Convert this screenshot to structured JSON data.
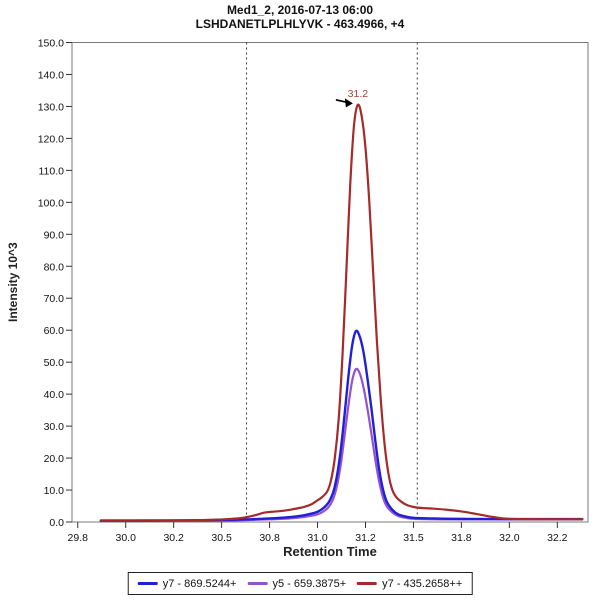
{
  "title": {
    "line1": "Med1_2, 2016-07-13 06:00",
    "line2": "LSHDANETLPLHLYVK - 463.4966, +4"
  },
  "axes": {
    "x": {
      "title": "Retention Time",
      "min": 29.72,
      "max": 32.41,
      "tick_values": [
        29.75,
        30.0,
        30.25,
        30.5,
        30.75,
        31.0,
        31.25,
        31.5,
        31.75,
        32.0,
        32.25
      ],
      "tick_labels": [
        "29.8",
        "30.0",
        "30.2",
        "30.5",
        "30.8",
        "31.0",
        "31.2",
        "31.5",
        "31.8",
        "32.0",
        "32.2"
      ]
    },
    "y": {
      "title": "Intensity 10^3",
      "min": 0,
      "max": 150,
      "tick_values": [
        0,
        10,
        20,
        30,
        40,
        50,
        60,
        70,
        80,
        90,
        100,
        110,
        120,
        130,
        140,
        150
      ],
      "tick_labels": [
        "0.0",
        "10.0",
        "20.0",
        "30.0",
        "40.0",
        "50.0",
        "60.0",
        "70.0",
        "80.0",
        "90.0",
        "100.0",
        "110.0",
        "120.0",
        "130.0",
        "140.0",
        "150.0"
      ]
    }
  },
  "peak_annotation": {
    "text": "31.2",
    "time": 31.2,
    "intensity": 130.5,
    "text_color": "#A5402F",
    "arrow_color": "#000000"
  },
  "integration_boundaries": {
    "left_time": 30.63,
    "right_time": 31.52,
    "line_color": "#3a3a3a",
    "style": "dashed"
  },
  "frame_color": "#787878",
  "legend": {
    "items": [
      {
        "label": "y7 - 869.5244+",
        "color": "#2020D8"
      },
      {
        "label": "y5 - 659.3875+",
        "color": "#9452D1"
      },
      {
        "label": "y7 - 435.2658++",
        "color": "#A52A2A"
      }
    ]
  },
  "chart_data": {
    "type": "line",
    "title": "Med1_2, 2016-07-13 06:00",
    "subtitle": "LSHDANETLPLHLYVK - 463.4966, +4",
    "xlabel": "Retention Time",
    "ylabel": "Intensity 10^3",
    "xlim": [
      29.72,
      32.41
    ],
    "ylim": [
      0,
      150
    ],
    "grid": false,
    "legend_position": "bottom-center",
    "peak_retention_time": 31.2,
    "integration_window": [
      30.63,
      31.52
    ],
    "series": [
      {
        "name": "y5 - 659.3875+",
        "color": "#9452D1",
        "width": 2.2,
        "points": [
          [
            29.87,
            0.3
          ],
          [
            30.0,
            0.3
          ],
          [
            30.2,
            0.35
          ],
          [
            30.4,
            0.4
          ],
          [
            30.55,
            0.5
          ],
          [
            30.65,
            0.65
          ],
          [
            30.75,
            0.85
          ],
          [
            30.85,
            1.1
          ],
          [
            30.92,
            1.5
          ],
          [
            31.0,
            2.4
          ],
          [
            31.05,
            4.2
          ],
          [
            31.08,
            7
          ],
          [
            31.1,
            11
          ],
          [
            31.12,
            17.5
          ],
          [
            31.14,
            26.5
          ],
          [
            31.16,
            36
          ],
          [
            31.18,
            44
          ],
          [
            31.2,
            47.8
          ],
          [
            31.22,
            46.5
          ],
          [
            31.24,
            42
          ],
          [
            31.26,
            35.5
          ],
          [
            31.28,
            28
          ],
          [
            31.3,
            20
          ],
          [
            31.32,
            13
          ],
          [
            31.34,
            8
          ],
          [
            31.36,
            5
          ],
          [
            31.39,
            3
          ],
          [
            31.42,
            1.9
          ],
          [
            31.46,
            1.3
          ],
          [
            31.5,
            1.0
          ],
          [
            31.6,
            0.85
          ],
          [
            31.7,
            0.8
          ],
          [
            31.8,
            0.8
          ],
          [
            32.0,
            0.8
          ],
          [
            32.2,
            0.8
          ],
          [
            32.38,
            0.8
          ]
        ]
      },
      {
        "name": "y7 - 869.5244+",
        "color": "#2020D8",
        "width": 2.4,
        "points": [
          [
            29.87,
            0.4
          ],
          [
            30.0,
            0.4
          ],
          [
            30.2,
            0.45
          ],
          [
            30.4,
            0.55
          ],
          [
            30.55,
            0.7
          ],
          [
            30.65,
            0.85
          ],
          [
            30.75,
            1.1
          ],
          [
            30.85,
            1.5
          ],
          [
            30.92,
            2.0
          ],
          [
            31.0,
            3.2
          ],
          [
            31.05,
            5.5
          ],
          [
            31.08,
            9
          ],
          [
            31.1,
            14
          ],
          [
            31.12,
            22
          ],
          [
            31.14,
            33
          ],
          [
            31.16,
            45
          ],
          [
            31.18,
            55
          ],
          [
            31.2,
            59.7
          ],
          [
            31.22,
            58
          ],
          [
            31.24,
            53
          ],
          [
            31.26,
            45
          ],
          [
            31.28,
            36
          ],
          [
            31.3,
            26
          ],
          [
            31.32,
            17
          ],
          [
            31.34,
            10.5
          ],
          [
            31.36,
            6.5
          ],
          [
            31.39,
            3.8
          ],
          [
            31.42,
            2.4
          ],
          [
            31.46,
            1.7
          ],
          [
            31.5,
            1.3
          ],
          [
            31.6,
            1.1
          ],
          [
            31.7,
            1.0
          ],
          [
            31.8,
            0.95
          ],
          [
            32.0,
            0.9
          ],
          [
            32.2,
            0.9
          ],
          [
            32.38,
            0.9
          ]
        ]
      },
      {
        "name": "y7 - 435.2658++",
        "color": "#A52A2A",
        "width": 2.2,
        "points": [
          [
            29.87,
            0.5
          ],
          [
            30.0,
            0.5
          ],
          [
            30.2,
            0.5
          ],
          [
            30.35,
            0.55
          ],
          [
            30.5,
            0.8
          ],
          [
            30.58,
            1.1
          ],
          [
            30.63,
            1.5
          ],
          [
            30.68,
            2.2
          ],
          [
            30.72,
            2.9
          ],
          [
            30.76,
            3.2
          ],
          [
            30.82,
            3.5
          ],
          [
            30.88,
            4.1
          ],
          [
            30.93,
            4.7
          ],
          [
            30.97,
            5.6
          ],
          [
            31.0,
            6.8
          ],
          [
            31.02,
            7.6
          ],
          [
            31.05,
            9.5
          ],
          [
            31.07,
            13
          ],
          [
            31.09,
            20
          ],
          [
            31.11,
            32
          ],
          [
            31.13,
            52
          ],
          [
            31.15,
            78
          ],
          [
            31.17,
            105
          ],
          [
            31.19,
            124
          ],
          [
            31.21,
            130.5
          ],
          [
            31.23,
            127
          ],
          [
            31.25,
            117
          ],
          [
            31.27,
            100
          ],
          [
            31.29,
            78
          ],
          [
            31.31,
            56
          ],
          [
            31.33,
            38
          ],
          [
            31.35,
            24
          ],
          [
            31.37,
            15
          ],
          [
            31.39,
            10
          ],
          [
            31.41,
            7.8
          ],
          [
            31.44,
            6.2
          ],
          [
            31.47,
            5.2
          ],
          [
            31.52,
            4.5
          ],
          [
            31.6,
            4.2
          ],
          [
            31.68,
            3.8
          ],
          [
            31.75,
            3.3
          ],
          [
            31.82,
            2.6
          ],
          [
            31.9,
            1.7
          ],
          [
            31.97,
            1.1
          ],
          [
            32.05,
            0.9
          ],
          [
            32.2,
            0.85
          ],
          [
            32.38,
            0.85
          ]
        ]
      }
    ]
  }
}
